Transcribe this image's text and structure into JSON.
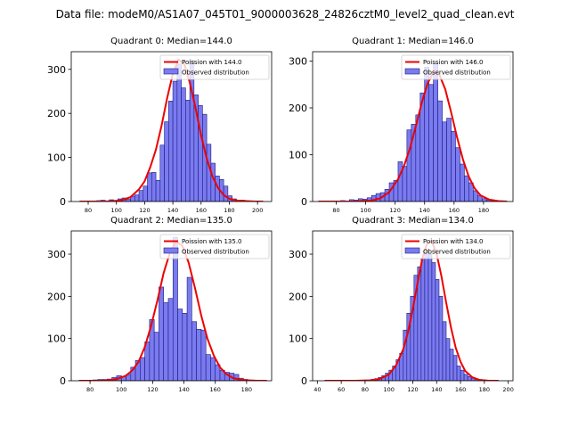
{
  "figure_title": "Data file: modeM0/AS1A07_045T01_9000003628_24826cztM0_level2_quad_clean.evt",
  "colors": {
    "bar_fill": "#7b7bf0",
    "bar_edge": "#1a1a80",
    "poisson_line": "#ee0000"
  },
  "chart_data": [
    {
      "type": "bar",
      "title": "Quadrant 0: Median=144.0",
      "xlim": [
        68,
        210
      ],
      "ylim": [
        0,
        340
      ],
      "xticks": [
        80,
        100,
        120,
        140,
        160,
        180,
        200
      ],
      "yticks": [
        0,
        100,
        200,
        300
      ],
      "legend": [
        "Poission with 144.0",
        "Observed distribution"
      ],
      "legend_position": "upper right",
      "bin_width": 3,
      "bin_starts": [
        74,
        77,
        80,
        83,
        86,
        89,
        92,
        95,
        98,
        101,
        104,
        107,
        110,
        113,
        116,
        119,
        122,
        125,
        128,
        131,
        134,
        137,
        140,
        143,
        146,
        149,
        152,
        155,
        158,
        161,
        164,
        167,
        170,
        173,
        176,
        179,
        182,
        185,
        188,
        191,
        194,
        197,
        200
      ],
      "observed": [
        1,
        1,
        1,
        1,
        2,
        3,
        1,
        4,
        2,
        6,
        8,
        5,
        12,
        15,
        25,
        35,
        65,
        66,
        48,
        128,
        181,
        228,
        273,
        312,
        258,
        230,
        320,
        242,
        218,
        198,
        130,
        87,
        58,
        50,
        35,
        13,
        6,
        3,
        3,
        1,
        1,
        1,
        0
      ],
      "poisson_x": [
        74,
        80,
        86,
        92,
        98,
        104,
        110,
        116,
        120,
        124,
        128,
        132,
        136,
        140,
        144,
        148,
        152,
        156,
        160,
        164,
        168,
        172,
        176,
        180,
        186,
        192,
        198,
        204
      ],
      "poisson_y": [
        0,
        0,
        0,
        0,
        1,
        3,
        10,
        28,
        46,
        78,
        118,
        172,
        235,
        290,
        322,
        313,
        270,
        214,
        150,
        98,
        57,
        31,
        15,
        6,
        2,
        1,
        0,
        0
      ]
    },
    {
      "type": "bar",
      "title": "Quadrant 1: Median=146.0",
      "xlim": [
        64,
        200
      ],
      "ylim": [
        0,
        320
      ],
      "xticks": [
        80,
        100,
        120,
        140,
        160,
        180
      ],
      "yticks": [
        0,
        100,
        200,
        300
      ],
      "legend": [
        "Poission with 146.0",
        "Observed distribution"
      ],
      "legend_position": "upper right",
      "bin_width": 3,
      "bin_starts": [
        68,
        71,
        74,
        77,
        80,
        83,
        86,
        89,
        92,
        95,
        98,
        101,
        104,
        107,
        110,
        113,
        116,
        119,
        122,
        125,
        128,
        131,
        134,
        137,
        140,
        143,
        146,
        149,
        152,
        155,
        158,
        161,
        164,
        167,
        170,
        173,
        176,
        179,
        182,
        185,
        188,
        191,
        194
      ],
      "observed": [
        1,
        1,
        1,
        1,
        1,
        2,
        1,
        4,
        3,
        6,
        5,
        8,
        13,
        17,
        19,
        26,
        40,
        45,
        85,
        75,
        153,
        165,
        185,
        232,
        287,
        250,
        295,
        215,
        170,
        178,
        150,
        115,
        80,
        55,
        40,
        23,
        13,
        6,
        3,
        1,
        1,
        1,
        0
      ],
      "poisson_x": [
        68,
        80,
        92,
        104,
        110,
        116,
        122,
        126,
        130,
        134,
        138,
        142,
        146,
        150,
        154,
        158,
        162,
        166,
        170,
        174,
        178,
        184,
        190,
        196
      ],
      "poisson_y": [
        0,
        0,
        0,
        2,
        7,
        20,
        48,
        76,
        113,
        160,
        210,
        252,
        276,
        271,
        240,
        191,
        138,
        90,
        53,
        28,
        13,
        4,
        1,
        0
      ]
    },
    {
      "type": "bar",
      "title": "Quadrant 2: Median=135.0",
      "xlim": [
        68,
        196
      ],
      "ylim": [
        0,
        355
      ],
      "xticks": [
        80,
        100,
        120,
        140,
        160,
        180
      ],
      "yticks": [
        0,
        100,
        200,
        300
      ],
      "legend": [
        "Poission with 135.0",
        "Observed distribution"
      ],
      "legend_position": "upper right",
      "bin_width": 3,
      "bin_starts": [
        73,
        76,
        79,
        82,
        85,
        88,
        91,
        94,
        97,
        100,
        103,
        106,
        109,
        112,
        115,
        118,
        121,
        124,
        127,
        130,
        133,
        136,
        139,
        142,
        145,
        148,
        151,
        154,
        157,
        160,
        163,
        166,
        169,
        172,
        175,
        178,
        181,
        184,
        187,
        190
      ],
      "observed": [
        1,
        1,
        1,
        2,
        3,
        3,
        4,
        8,
        12,
        10,
        15,
        32,
        48,
        55,
        92,
        145,
        115,
        222,
        185,
        195,
        340,
        170,
        160,
        245,
        140,
        122,
        120,
        62,
        55,
        38,
        25,
        20,
        18,
        15,
        6,
        3,
        1,
        1,
        1,
        0
      ],
      "poisson_x": [
        73,
        79,
        85,
        91,
        97,
        103,
        107,
        111,
        115,
        119,
        123,
        127,
        131,
        135,
        139,
        143,
        147,
        151,
        155,
        159,
        163,
        167,
        171,
        175,
        181,
        187,
        193
      ],
      "poisson_y": [
        0,
        0,
        0,
        1,
        4,
        12,
        25,
        45,
        80,
        130,
        190,
        255,
        303,
        330,
        320,
        280,
        220,
        155,
        100,
        60,
        32,
        16,
        7,
        3,
        1,
        0,
        0
      ]
    },
    {
      "type": "bar",
      "title": "Quadrant 3: Median=134.0",
      "xlim": [
        36,
        204
      ],
      "ylim": [
        0,
        355
      ],
      "xticks": [
        40,
        60,
        80,
        100,
        120,
        140,
        160,
        180,
        200
      ],
      "yticks": [
        0,
        100,
        200,
        300
      ],
      "legend": [
        "Poission with 134.0",
        "Observed distribution"
      ],
      "legend_position": "upper right",
      "bin_width": 3,
      "bin_starts": [
        46,
        49,
        52,
        55,
        58,
        61,
        64,
        67,
        70,
        73,
        76,
        79,
        82,
        85,
        88,
        91,
        94,
        97,
        100,
        103,
        106,
        109,
        112,
        115,
        118,
        121,
        124,
        127,
        130,
        133,
        136,
        139,
        142,
        145,
        148,
        151,
        154,
        157,
        160,
        163,
        166,
        169,
        172,
        175,
        178,
        181,
        184,
        187,
        190
      ],
      "observed": [
        0,
        0,
        1,
        0,
        0,
        0,
        0,
        0,
        1,
        1,
        1,
        1,
        1,
        3,
        5,
        8,
        12,
        18,
        25,
        35,
        50,
        65,
        120,
        160,
        200,
        250,
        270,
        290,
        310,
        300,
        280,
        240,
        200,
        140,
        100,
        75,
        60,
        35,
        25,
        15,
        10,
        6,
        4,
        3,
        2,
        1,
        1,
        1,
        0
      ],
      "poisson_x": [
        46,
        60,
        72,
        84,
        92,
        100,
        106,
        112,
        116,
        120,
        124,
        128,
        132,
        136,
        140,
        144,
        148,
        152,
        156,
        160,
        164,
        170,
        176,
        184,
        192
      ],
      "poisson_y": [
        0,
        0,
        0,
        1,
        4,
        15,
        37,
        75,
        115,
        170,
        232,
        290,
        326,
        330,
        300,
        248,
        185,
        126,
        78,
        45,
        23,
        8,
        2,
        0,
        0
      ]
    }
  ]
}
